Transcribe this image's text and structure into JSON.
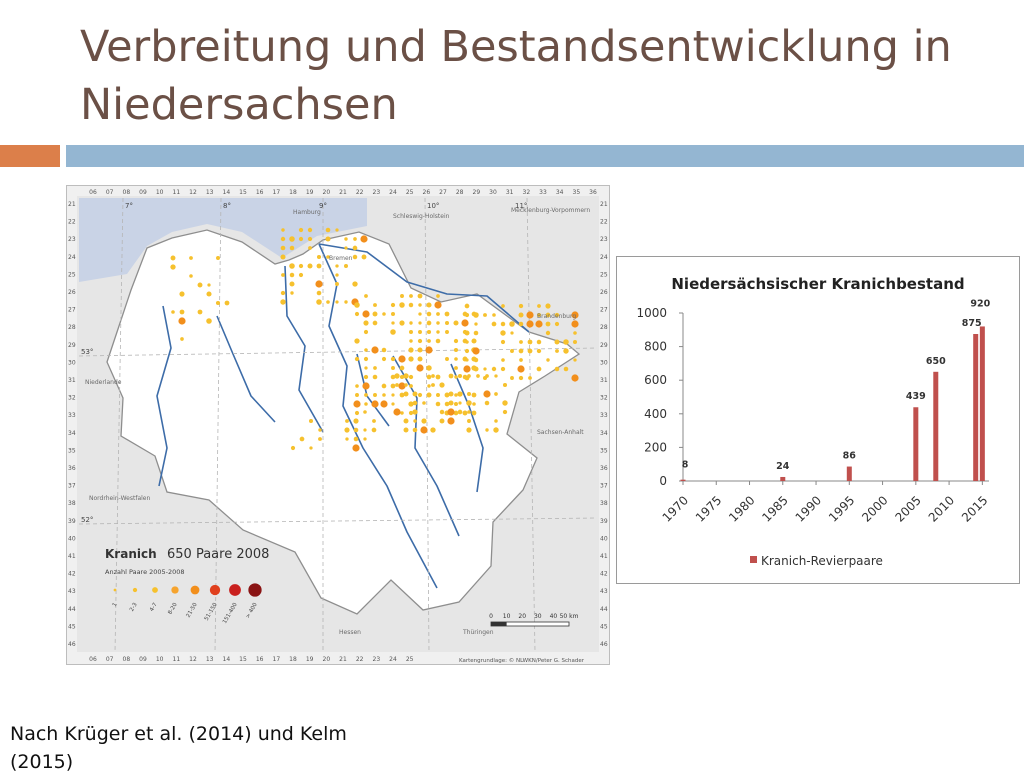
{
  "slide": {
    "title": "Verbreitung und Bestandsentwicklung in Niedersachsen",
    "source": "Nach Krüger et al. (2014) und Kelm (2015)",
    "colors": {
      "title": "#6b5046",
      "accent": "#dc7f4a",
      "band": "#94b6d2"
    }
  },
  "map": {
    "species_label": "Kranich",
    "pairs_label": "650 Paare 2008",
    "legend_caption": "Anzahl Paare 2005-2008",
    "legend_classes": [
      "1",
      "2-3",
      "4-7",
      "8-20",
      "21-50",
      "51-150",
      "151-400",
      "> 400"
    ],
    "scale_labels": [
      "0",
      "10",
      "20",
      "30",
      "40",
      "50 km"
    ],
    "credit": "Kartengrundlage: © NLWKN/Peter G. Schader",
    "top_ticks": [
      "06",
      "07",
      "08",
      "09",
      "10",
      "11",
      "12",
      "13",
      "14",
      "15",
      "16",
      "17",
      "18",
      "19",
      "20",
      "21",
      "22",
      "23",
      "24",
      "25",
      "26",
      "27",
      "28",
      "29",
      "30",
      "31",
      "32",
      "33",
      "34",
      "35",
      "36"
    ],
    "side_ticks": [
      "21",
      "22",
      "23",
      "24",
      "25",
      "26",
      "27",
      "28",
      "29",
      "30",
      "31",
      "32",
      "33",
      "34",
      "35",
      "36",
      "37",
      "38",
      "39",
      "40",
      "41",
      "42",
      "43",
      "44",
      "45",
      "46"
    ],
    "place_labels": [
      "Hamburg",
      "Schleswig-Holstein",
      "Mecklenburg-Vorpommern",
      "Brandenburg",
      "Sachsen-Anhalt",
      "Nordrhein-Westfalen",
      "Hessen",
      "Thüringen",
      "Niederlande",
      "Bremen"
    ],
    "coord_labels": [
      "7°",
      "8°",
      "9°",
      "10°",
      "11°",
      "53°",
      "52°"
    ]
  },
  "chart_data": {
    "type": "bar",
    "title": "Niedersächsischer Kranichbestand",
    "x": [
      1970,
      1985,
      1995,
      2005,
      2008,
      2014,
      2015
    ],
    "values": [
      8,
      24,
      86,
      439,
      650,
      875,
      920
    ],
    "data_labels": [
      "8",
      "24",
      "86",
      "439",
      "650",
      "875",
      "920"
    ],
    "xlim": [
      1970,
      2016
    ],
    "xticks": [
      "1970",
      "1975",
      "1980",
      "1985",
      "1990",
      "1995",
      "2000",
      "2005",
      "2010",
      "2015"
    ],
    "yticks": [
      "0",
      "200",
      "400",
      "600",
      "800",
      "1000"
    ],
    "ylim": [
      0,
      1000
    ],
    "series_name": "Kranich-Revierpaare",
    "bar_color": "#c0504d",
    "legend_position": "bottom",
    "grid": false
  }
}
